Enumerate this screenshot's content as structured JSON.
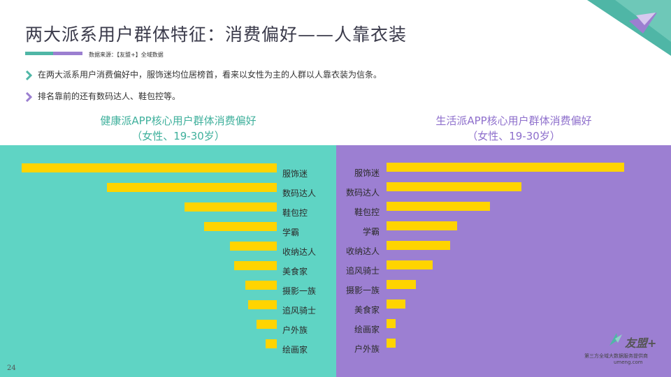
{
  "header": {
    "title": "两大派系用户群体特征：消费偏好——人靠衣装",
    "source": "数据来源：【友盟+】全域数据"
  },
  "bullets": [
    "在两大派系用户消费偏好中，服饰迷均位居榜首，看来以女性为主的人群以人靠衣装为信条。",
    "排名靠前的还有数码达人、鞋包控等。"
  ],
  "chart_data": [
    {
      "type": "bar",
      "title": "健康派APP核心用户群体消费偏好",
      "subtitle": "（女性、19-30岁）",
      "orientation": "horizontal",
      "direction": "right-to-left",
      "categories": [
        "服饰迷",
        "数码达人",
        "鞋包控",
        "学霸",
        "收纳达人",
        "美食家",
        "摄影一族",
        "追风骑士",
        "户外族",
        "绘画家"
      ],
      "values": [
        365,
        243,
        132,
        104,
        67,
        61,
        45,
        41,
        29,
        16
      ]
    },
    {
      "type": "bar",
      "title": "生活派APP核心用户群体消费偏好",
      "subtitle": "（女性、19-30岁）",
      "orientation": "horizontal",
      "direction": "left-to-right",
      "categories": [
        "服饰迷",
        "数码达人",
        "鞋包控",
        "学霸",
        "收纳达人",
        "追风骑士",
        "摄影一族",
        "美食家",
        "绘画家",
        "户外族"
      ],
      "values": [
        340,
        193,
        148,
        101,
        91,
        66,
        42,
        27,
        13,
        13
      ]
    }
  ],
  "footer": {
    "page_number": "24",
    "logo_text": "友盟+",
    "logo_sub1": "第三方全域大数据服务提供商",
    "logo_sub2": "umeng.com"
  },
  "colors": {
    "teal": "#5fd4c4",
    "purple": "#9c7fd2",
    "bar": "#ffd400"
  }
}
